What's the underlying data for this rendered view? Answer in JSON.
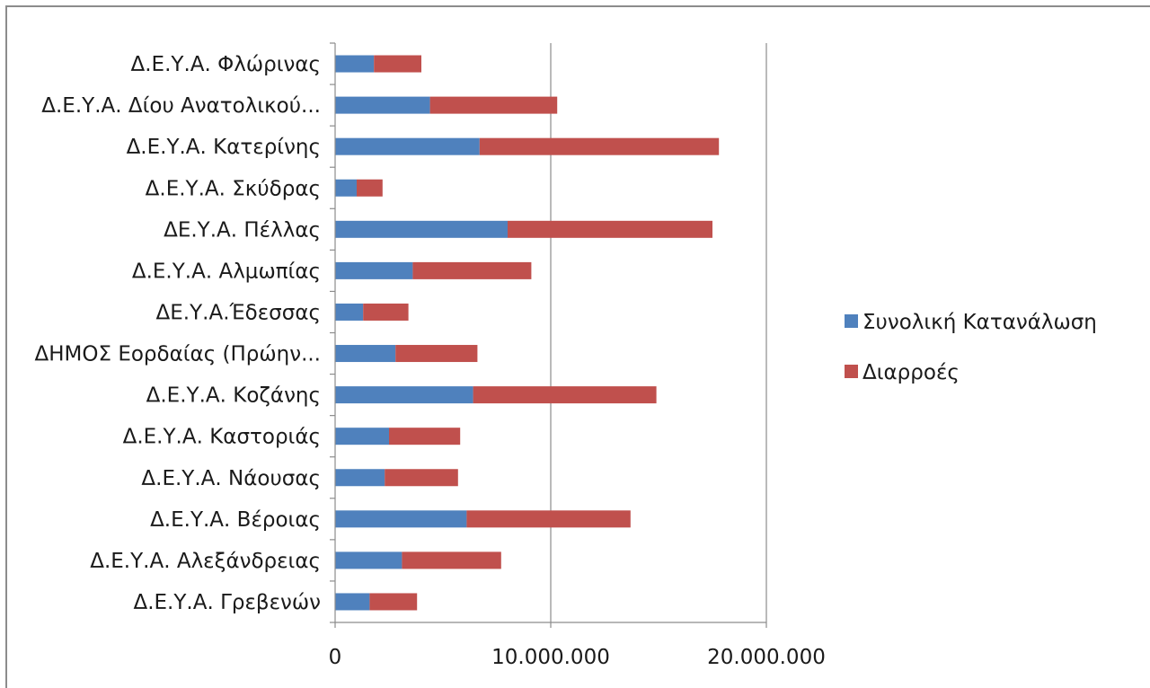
{
  "chart_data": {
    "type": "bar",
    "orientation": "horizontal",
    "stacked": true,
    "categories": [
      "Δ.Ε.Υ.Α. Φλώρινας",
      "Δ.Ε.Υ.Α. Δίου Ανατολικού...",
      "Δ.Ε.Υ.Α. Κατερίνης",
      "Δ.Ε.Υ.Α. Σκύδρας",
      "ΔΕ.Υ.Α. Πέλλας",
      "Δ.Ε.Υ.Α. Αλμωπίας",
      "ΔΕ.Υ.Α.Έδεσσας",
      "ΔΗΜΟΣ Εορδαίας (Πρώην...",
      "Δ.Ε.Υ.Α. Κοζάνης",
      "Δ.Ε.Υ.Α. Καστοριάς",
      "Δ.Ε.Υ.Α. Νάουσας",
      "Δ.Ε.Υ.Α. Βέροιας",
      "Δ.Ε.Υ.Α. Αλεξάνδρειας",
      "Δ.Ε.Υ.Α. Γρεβενών"
    ],
    "series": [
      {
        "name": "Συνολική Κατανάλωση",
        "color": "#4f81bd",
        "values": [
          1800000,
          4400000,
          6700000,
          1000000,
          8000000,
          3600000,
          1300000,
          2800000,
          6400000,
          2500000,
          2300000,
          6100000,
          3100000,
          1600000
        ]
      },
      {
        "name": "Διαρροές",
        "color": "#c0504d",
        "values": [
          2200000,
          5900000,
          11100000,
          1200000,
          9500000,
          5500000,
          2100000,
          3800000,
          8500000,
          3300000,
          3400000,
          7600000,
          4600000,
          2200000
        ]
      }
    ],
    "x_ticks": [
      "0",
      "10.000.000",
      "20.000.000"
    ],
    "xlim": [
      0,
      20000000
    ],
    "grid": true,
    "legend_position": "right",
    "title": "",
    "xlabel": "",
    "ylabel": ""
  }
}
